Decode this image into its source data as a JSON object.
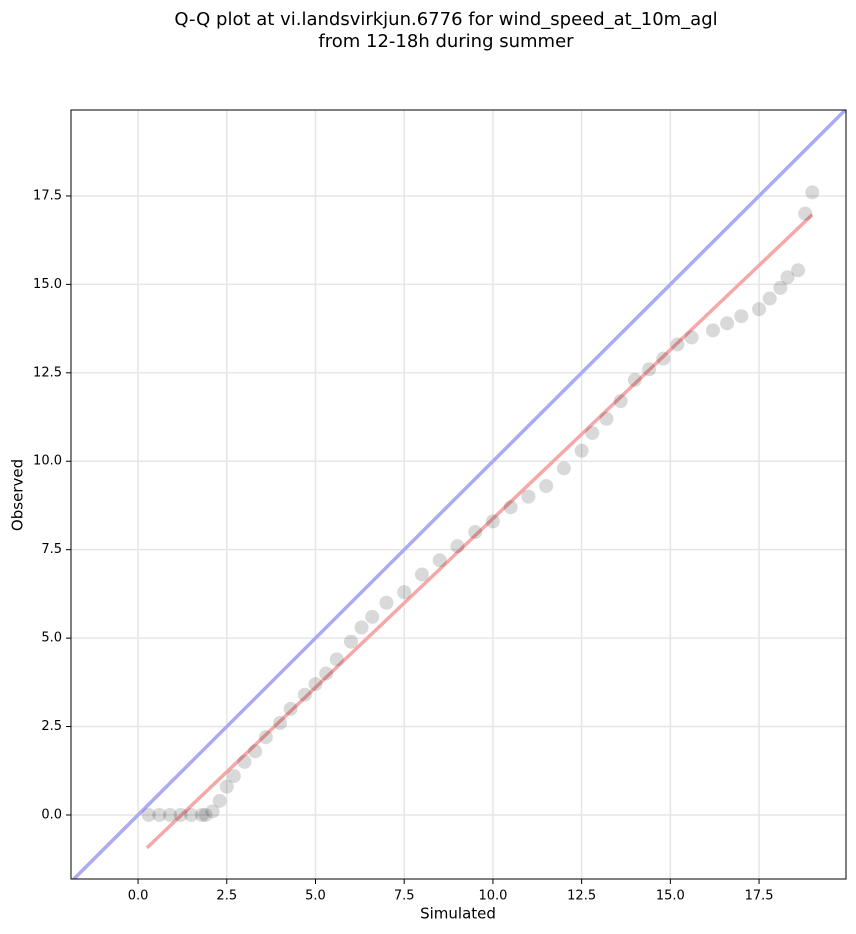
{
  "chart_data": {
    "type": "scatter",
    "title": [
      "Q-Q plot at vi.landsvirkjun.6776 for wind_speed_at_10m_agl",
      "from 12-18h during summer"
    ],
    "x_label": "Simulated",
    "y_label": "Observed",
    "xlim": [
      -1.89,
      19.95
    ],
    "ylim": [
      -1.81,
      19.93
    ],
    "xticks": [
      {
        "value": 0,
        "label": "0.0"
      },
      {
        "value": 2.5,
        "label": "2.5"
      },
      {
        "value": 5,
        "label": "5.0"
      },
      {
        "value": 7.5,
        "label": "7.5"
      },
      {
        "value": 10,
        "label": "10.0"
      },
      {
        "value": 12.5,
        "label": "12.5"
      },
      {
        "value": 15,
        "label": "15.0"
      },
      {
        "value": 17.5,
        "label": "17.5"
      }
    ],
    "yticks": [
      {
        "value": 0,
        "label": "0.0"
      },
      {
        "value": 2.5,
        "label": "2.5"
      },
      {
        "value": 5,
        "label": "5.0"
      },
      {
        "value": 7.5,
        "label": "7.5"
      },
      {
        "value": 10,
        "label": "10.0"
      },
      {
        "value": 12.5,
        "label": "12.5"
      },
      {
        "value": 15,
        "label": "15.0"
      },
      {
        "value": 17.5,
        "label": "17.5"
      }
    ],
    "grid": true,
    "color": "#000000",
    "x": [
      0.3,
      0.6,
      0.9,
      1.2,
      1.5,
      1.8,
      1.9,
      2.1,
      2.3,
      2.5,
      2.7,
      3.0,
      3.3,
      3.6,
      4.0,
      4.3,
      4.7,
      5.0,
      5.3,
      5.6,
      6.0,
      6.3,
      6.6,
      7.0,
      7.5,
      8.0,
      8.5,
      9.0,
      9.5,
      10.0,
      10.5,
      11.0,
      11.5,
      12.0,
      12.5,
      12.8,
      13.2,
      13.6,
      14.0,
      14.4,
      14.8,
      15.2,
      15.6,
      16.2,
      16.6,
      17.0,
      17.5,
      17.8,
      18.1,
      18.3,
      18.6,
      18.8,
      19.0
    ],
    "values": [
      0,
      0,
      0,
      0,
      0,
      0,
      0,
      0.1,
      0.4,
      0.8,
      1.1,
      1.5,
      1.8,
      2.2,
      2.6,
      3.0,
      3.4,
      3.7,
      4.0,
      4.4,
      4.9,
      5.3,
      5.6,
      6.0,
      6.3,
      6.8,
      7.2,
      7.6,
      8.0,
      8.3,
      8.7,
      9.0,
      9.3,
      9.8,
      10.3,
      10.8,
      11.2,
      11.7,
      12.3,
      12.6,
      12.9,
      13.3,
      13.5,
      13.7,
      13.9,
      14.1,
      14.3,
      14.6,
      14.9,
      15.2,
      15.4,
      17.0,
      17.6
    ],
    "lines": [
      {
        "color": "#aaaaf5",
        "x": [
          -1.89,
          19.95
        ],
        "y": [
          -1.89,
          19.95
        ]
      },
      {
        "color": "#f5a8a8",
        "x": [
          0.25,
          19
        ],
        "y": [
          -0.93,
          16.97
        ]
      }
    ]
  }
}
